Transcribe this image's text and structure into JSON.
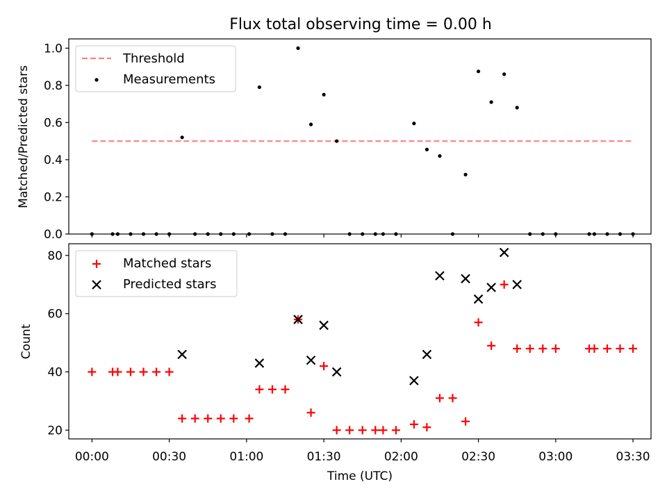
{
  "chart_data": [
    {
      "type": "scatter",
      "title": "Flux total observing time = 0.00 h",
      "ylabel": "Matched/Predicted stars",
      "xlabel": "",
      "xlim": [
        "23:51",
        "03:37"
      ],
      "ylim": [
        0,
        1.05
      ],
      "yticks": [
        "0.0",
        "0.2",
        "0.4",
        "0.6",
        "0.8",
        "1.0"
      ],
      "legend_position": "top-left",
      "legend": [
        "Threshold",
        "Measurements"
      ],
      "threshold": {
        "name": "Threshold",
        "style": "dashed",
        "color": "#ff7f7f",
        "x": [
          "00:00",
          "03:30"
        ],
        "y": 0.5
      },
      "measurements": {
        "name": "Measurements",
        "color": "#000000",
        "x": [
          "00:00",
          "00:08",
          "00:10",
          "00:15",
          "00:20",
          "00:25",
          "00:30",
          "00:35",
          "00:40",
          "00:45",
          "00:50",
          "00:55",
          "01:01",
          "01:05",
          "01:10",
          "01:15",
          "01:20",
          "01:25",
          "01:30",
          "01:35",
          "01:40",
          "01:45",
          "01:50",
          "01:53",
          "01:58",
          "02:05",
          "02:10",
          "02:15",
          "02:20",
          "02:25",
          "02:30",
          "02:35",
          "02:40",
          "02:45",
          "02:50",
          "02:55",
          "03:00",
          "03:13",
          "03:15",
          "03:20",
          "03:25",
          "03:30"
        ],
        "y": [
          0,
          0,
          0,
          0,
          0,
          0,
          0,
          0.52,
          0,
          0,
          0,
          0,
          0,
          0.79,
          0,
          0,
          1.0,
          0.59,
          0.75,
          0.5,
          0,
          0,
          0,
          0,
          0,
          0.595,
          0.455,
          0.42,
          0,
          0.32,
          0.875,
          0.71,
          0.86,
          0.68,
          0,
          0,
          0,
          0,
          0,
          0,
          0,
          0
        ]
      }
    },
    {
      "type": "scatter",
      "title": "",
      "ylabel": "Count",
      "xlabel": "Time (UTC)",
      "xlim": [
        "23:51",
        "03:37"
      ],
      "ylim": [
        17,
        84
      ],
      "yticks": [
        "20",
        "40",
        "60",
        "80"
      ],
      "xticks": [
        "00:00",
        "00:30",
        "01:00",
        "01:30",
        "02:00",
        "02:30",
        "03:00",
        "03:30"
      ],
      "legend_position": "top-left",
      "legend": [
        "Matched stars",
        "Predicted stars"
      ],
      "series": [
        {
          "name": "Matched stars",
          "marker": "+",
          "color": "#ff0000",
          "x": [
            "00:00",
            "00:08",
            "00:10",
            "00:15",
            "00:20",
            "00:25",
            "00:30",
            "00:35",
            "00:40",
            "00:45",
            "00:50",
            "00:55",
            "01:01",
            "01:05",
            "01:10",
            "01:15",
            "01:20",
            "01:25",
            "01:30",
            "01:35",
            "01:40",
            "01:45",
            "01:50",
            "01:53",
            "01:58",
            "02:05",
            "02:10",
            "02:15",
            "02:20",
            "02:25",
            "02:30",
            "02:35",
            "02:40",
            "02:45",
            "02:50",
            "02:55",
            "03:00",
            "03:13",
            "03:15",
            "03:20",
            "03:25",
            "03:30"
          ],
          "y": [
            40,
            40,
            40,
            40,
            40,
            40,
            40,
            24,
            24,
            24,
            24,
            24,
            24,
            34,
            34,
            34,
            58,
            26,
            42,
            20,
            20,
            20,
            20,
            20,
            20,
            22,
            21,
            31,
            31,
            23,
            57,
            49,
            70,
            48,
            48,
            48,
            48,
            48,
            48,
            48,
            48,
            48
          ]
        },
        {
          "name": "Predicted stars",
          "marker": "x",
          "color": "#000000",
          "x": [
            "00:35",
            "01:05",
            "01:20",
            "01:25",
            "01:30",
            "01:35",
            "02:05",
            "02:10",
            "02:15",
            "02:25",
            "02:30",
            "02:35",
            "02:40",
            "02:45"
          ],
          "y": [
            46,
            43,
            58,
            44,
            56,
            40,
            37,
            46,
            73,
            72,
            65,
            69,
            81,
            70
          ]
        }
      ]
    }
  ]
}
